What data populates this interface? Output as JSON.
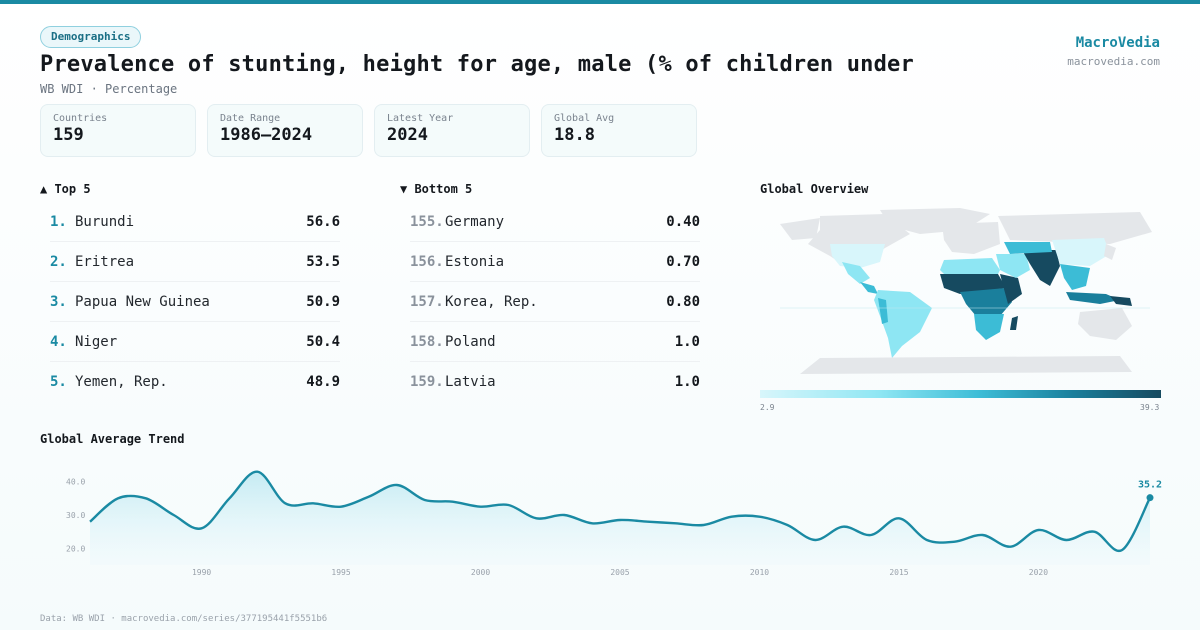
{
  "header": {
    "badge": "Demographics",
    "title": "Prevalence of stunting, height for age, male (% of children under",
    "subtitle": "WB WDI · Percentage",
    "brand": "MacroVedia",
    "brand_url": "macrovedia.com"
  },
  "stats": [
    {
      "label": "Countries",
      "value": "159"
    },
    {
      "label": "Date Range",
      "value": "1986–2024"
    },
    {
      "label": "Latest Year",
      "value": "2024"
    },
    {
      "label": "Global Avg",
      "value": "18.8"
    }
  ],
  "top5": {
    "title": "▲ Top 5",
    "items": [
      {
        "rank": "1.",
        "name": "Burundi",
        "value": "56.6"
      },
      {
        "rank": "2.",
        "name": "Eritrea",
        "value": "53.5"
      },
      {
        "rank": "3.",
        "name": "Papua New Guinea",
        "value": "50.9"
      },
      {
        "rank": "4.",
        "name": "Niger",
        "value": "50.4"
      },
      {
        "rank": "5.",
        "name": "Yemen, Rep.",
        "value": "48.9"
      }
    ]
  },
  "bottom5": {
    "title": "▼ Bottom 5",
    "items": [
      {
        "rank": "155.",
        "name": "Germany",
        "value": "0.40"
      },
      {
        "rank": "156.",
        "name": "Estonia",
        "value": "0.70"
      },
      {
        "rank": "157.",
        "name": "Korea, Rep.",
        "value": "0.80"
      },
      {
        "rank": "158.",
        "name": "Poland",
        "value": "1.0"
      },
      {
        "rank": "159.",
        "name": "Latvia",
        "value": "1.0"
      }
    ]
  },
  "map": {
    "title": "Global Overview",
    "legend_min": "2.9",
    "legend_max": "39.3"
  },
  "trend": {
    "title": "Global Average Trend",
    "last_label": "35.2"
  },
  "footer": "Data: WB WDI · macrovedia.com/series/377195441f5551b6",
  "colors": {
    "accent": "#1a8aa3",
    "line": "#1a8aa3",
    "fill": "#d6f1f6"
  },
  "chart_data": {
    "type": "area",
    "x": [
      1986,
      1987,
      1988,
      1989,
      1990,
      1991,
      1992,
      1993,
      1994,
      1995,
      1996,
      1997,
      1998,
      1999,
      2000,
      2001,
      2002,
      2003,
      2004,
      2005,
      2006,
      2007,
      2008,
      2009,
      2010,
      2011,
      2012,
      2013,
      2014,
      2015,
      2016,
      2017,
      2018,
      2019,
      2020,
      2021,
      2022,
      2023,
      2024
    ],
    "values": [
      28.0,
      35.0,
      35.0,
      30.0,
      26.0,
      35.0,
      43.0,
      33.5,
      33.5,
      32.5,
      35.5,
      39.0,
      34.5,
      34.0,
      32.5,
      33.0,
      29.0,
      30.0,
      27.5,
      28.5,
      28.0,
      27.5,
      27.0,
      29.5,
      29.5,
      27.0,
      22.5,
      26.5,
      24.0,
      29.0,
      22.5,
      22.0,
      24.0,
      20.5,
      25.5,
      22.5,
      25.0,
      19.5,
      35.2
    ],
    "yticks": [
      "40.0",
      "30.0",
      "20.0"
    ],
    "ytick_values": [
      40,
      30,
      20
    ],
    "xticks": [
      "1990",
      "1995",
      "2000",
      "2005",
      "2010",
      "2015",
      "2020"
    ],
    "xtick_values": [
      1990,
      1995,
      2000,
      2005,
      2010,
      2015,
      2020
    ],
    "ylim": [
      15,
      45
    ],
    "xlim": [
      1986,
      2024
    ],
    "grid": false
  }
}
